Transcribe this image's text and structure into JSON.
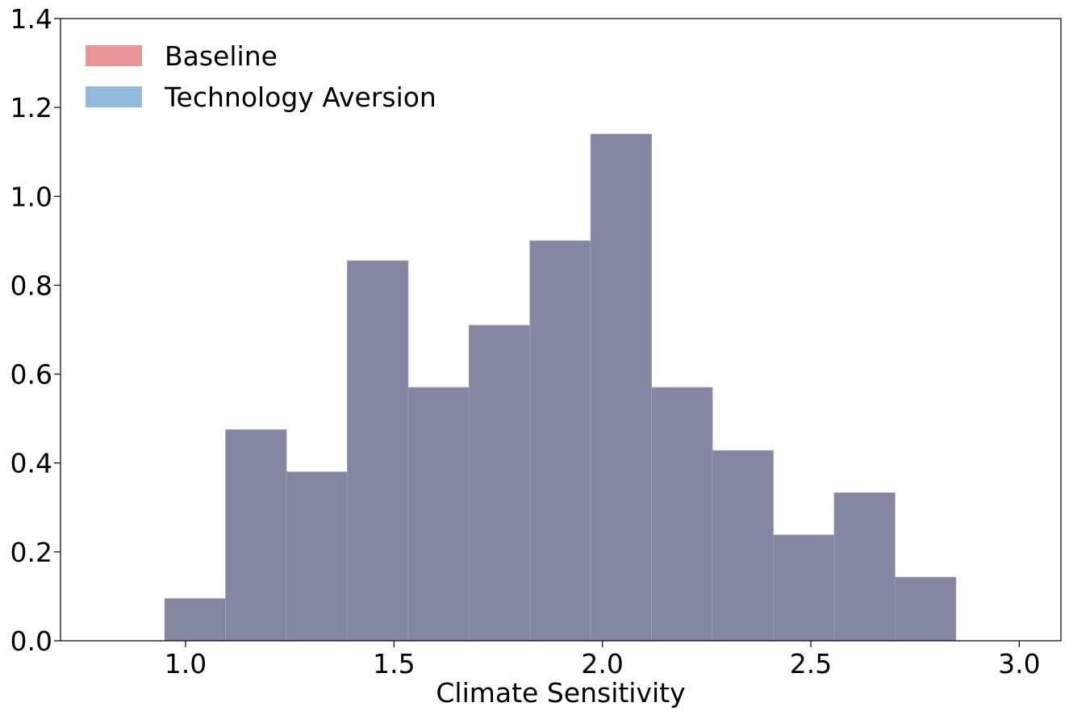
{
  "chart_data": {
    "type": "histogram",
    "title": "",
    "xlabel": "Climate Sensitivity",
    "ylabel": "",
    "xlim": [
      0.7,
      3.1
    ],
    "ylim": [
      0.0,
      1.4
    ],
    "xticks": [
      "1.0",
      "1.5",
      "2.0",
      "2.5",
      "3.0"
    ],
    "yticks": [
      "0.0",
      "0.2",
      "0.4",
      "0.6",
      "0.8",
      "1.0",
      "1.2",
      "1.4"
    ],
    "bin_edges": [
      0.95,
      1.096,
      1.242,
      1.388,
      1.534,
      1.68,
      1.826,
      1.972,
      2.118,
      2.264,
      2.41,
      2.556,
      2.702,
      2.848
    ],
    "series": [
      {
        "name": "Baseline",
        "color": "#e8898a",
        "values": [
          0.095,
          0.475,
          0.38,
          0.855,
          0.57,
          0.71,
          0.9,
          1.14,
          0.57,
          0.428,
          0.238,
          0.333,
          0.143
        ]
      },
      {
        "name": "Technology Aversion",
        "color": "#86b3d6",
        "values": [
          0.095,
          0.475,
          0.38,
          0.855,
          0.57,
          0.71,
          0.9,
          1.14,
          0.57,
          0.428,
          0.238,
          0.333,
          0.143
        ]
      }
    ],
    "overlap_color": "#8586a2",
    "legend_position": "top-left",
    "grid": false
  }
}
